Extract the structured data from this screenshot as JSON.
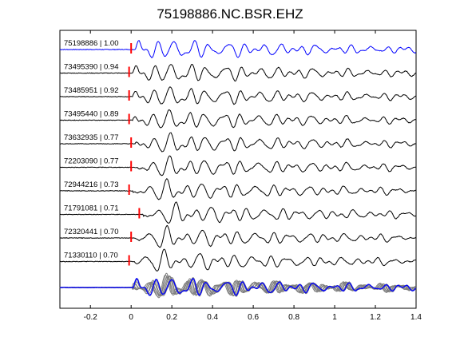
{
  "chart_data": {
    "type": "line",
    "title": "75198886.NC.BSR.EHZ",
    "xlabel": "",
    "ylabel": "",
    "xlim": [
      -0.35,
      1.4
    ],
    "x_ticks": [
      -0.2,
      0,
      0.2,
      0.4,
      0.6,
      0.8,
      1,
      1.2,
      1.4
    ],
    "x_tick_labels": [
      "-0.2",
      "0",
      "0.2",
      "0.4",
      "0.6",
      "0.8",
      "1",
      "1.2",
      "1.4"
    ],
    "grid": false,
    "traces": [
      {
        "label": "75198886 | 1.00",
        "pick_time": 0.0,
        "color": "#0000ff"
      },
      {
        "label": "73495390 | 0.94",
        "pick_time": -0.01,
        "color": "#000000"
      },
      {
        "label": "73485951 | 0.92",
        "pick_time": -0.01,
        "color": "#000000"
      },
      {
        "label": "73495440 | 0.89",
        "pick_time": -0.01,
        "color": "#000000"
      },
      {
        "label": "73632935 | 0.77",
        "pick_time": 0.0,
        "color": "#000000"
      },
      {
        "label": "72203090 | 0.77",
        "pick_time": 0.0,
        "color": "#000000"
      },
      {
        "label": "72944216 | 0.73",
        "pick_time": -0.01,
        "color": "#000000"
      },
      {
        "label": "71791081 | 0.71",
        "pick_time": 0.04,
        "color": "#000000"
      },
      {
        "label": "72320441 | 0.70",
        "pick_time": 0.0,
        "color": "#000000"
      },
      {
        "label": "71330110 | 0.70",
        "pick_time": -0.01,
        "color": "#000000"
      }
    ],
    "stack": {
      "master_color": "#0000ff",
      "others_color": "#808080"
    },
    "pick_color": "#ff0000"
  }
}
